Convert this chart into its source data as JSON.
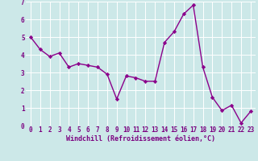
{
  "x": [
    0,
    1,
    2,
    3,
    4,
    5,
    6,
    7,
    8,
    9,
    10,
    11,
    12,
    13,
    14,
    15,
    16,
    17,
    18,
    19,
    20,
    21,
    22,
    23
  ],
  "y": [
    5.0,
    4.3,
    3.9,
    4.1,
    3.3,
    3.5,
    3.4,
    3.3,
    2.9,
    1.5,
    2.8,
    2.7,
    2.5,
    2.5,
    4.7,
    5.3,
    6.3,
    6.8,
    3.3,
    1.6,
    0.85,
    1.15,
    0.15,
    0.8
  ],
  "line_color": "#8B008B",
  "marker": "D",
  "marker_size": 2.2,
  "bg_color": "#cce8e8",
  "grid_color": "#ffffff",
  "xlabel": "Windchill (Refroidissement éolien,°C)",
  "xlabel_color": "#7B0080",
  "tick_color": "#7B0080",
  "xlim": [
    -0.5,
    23.5
  ],
  "ylim": [
    0,
    7
  ],
  "yticks": [
    0,
    1,
    2,
    3,
    4,
    5,
    6,
    7
  ],
  "xticks": [
    0,
    1,
    2,
    3,
    4,
    5,
    6,
    7,
    8,
    9,
    10,
    11,
    12,
    13,
    14,
    15,
    16,
    17,
    18,
    19,
    20,
    21,
    22,
    23
  ],
  "linewidth": 1.0,
  "tick_fontsize": 5.5,
  "xlabel_fontsize": 6.0
}
